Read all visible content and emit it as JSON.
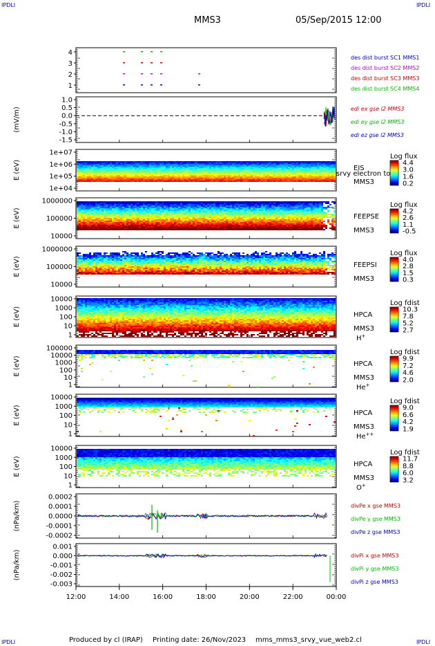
{
  "corner_labels": {
    "tl": "IPDLI",
    "tr": "IPDLI",
    "bl": "IPDLI",
    "br": "IPDLI"
  },
  "header": {
    "spacecraft": "MMS3",
    "datetime": "05/Sep/2015 12:00"
  },
  "footer": {
    "producer": "Produced by cl (IRAP)",
    "printing_date": "Printing date: 26/Nov/2023",
    "script": "mms_mms3_srvy_vue_web2.cl"
  },
  "colors": {
    "mms1": "#0000cc",
    "mms2": "#cc00cc",
    "mms3": "#cc0000",
    "mms4": "#00bb00",
    "x": "#cc0000",
    "y": "#00bb00",
    "z": "#0000cc"
  },
  "chart_data": [
    {
      "type": "scatter",
      "name": "burst_availability",
      "yticks": [
        "4",
        "3",
        "2",
        "1"
      ],
      "legend": [
        "des dist burst SC1 MMS1",
        "des dist burst SC2 MMS2",
        "des dist burst SC3 MMS3",
        "des dist burst SC4 MMS4"
      ]
    },
    {
      "type": "line",
      "ylabel": "(mV/m)",
      "yticks": [
        "1.0",
        "0.5",
        "0.0",
        "-0.5",
        "-1.0",
        "-1.5"
      ],
      "ylim": [
        -1.5,
        1.0
      ],
      "legend": [
        "edi ex gse l2 MMS3",
        "edi ey gse l2 MMS3",
        "edi ez gse l2 MMS3"
      ]
    },
    {
      "type": "heatmap",
      "ylabel": "E (eV)",
      "yticks": [
        "1e+07",
        "1e+06",
        "1e+05",
        "1e+04"
      ],
      "instrument": "EIS",
      "species": "srvy electron to",
      "sc": "MMS3",
      "colorbar_title": "Log flux",
      "colorbar_ticks": [
        "4.4",
        "3.0",
        "1.6",
        "0.2"
      ]
    },
    {
      "type": "heatmap",
      "ylabel": "E (eV)",
      "yticks": [
        "1000000",
        "100000",
        "10000"
      ],
      "instrument": "FEEPSE",
      "sc": "MMS3",
      "colorbar_title": "Log flux",
      "colorbar_ticks": [
        "4.2",
        "2.6",
        "1.1",
        "-0.5"
      ]
    },
    {
      "type": "heatmap",
      "ylabel": "E (eV)",
      "yticks": [
        "1000000",
        "100000",
        "10000"
      ],
      "instrument": "FEEPSI",
      "sc": "MMS3",
      "colorbar_title": "Log flux",
      "colorbar_ticks": [
        "4.0",
        "2.8",
        "1.5",
        "0.3"
      ]
    },
    {
      "type": "heatmap",
      "ylabel": "E (eV)",
      "yticks": [
        "10000",
        "1000",
        "100",
        "10",
        "1"
      ],
      "instrument": "HPCA",
      "sc": "MMS3",
      "species": "H",
      "species_sup": "+",
      "colorbar_title": "Log fdist",
      "colorbar_ticks": [
        "10.3",
        "7.8",
        "5.2",
        "2.7"
      ]
    },
    {
      "type": "heatmap",
      "ylabel": "E (eV)",
      "yticks": [
        "100000",
        "10000",
        "1000",
        "100",
        "10",
        "1"
      ],
      "instrument": "HPCA",
      "sc": "MMS3",
      "species": "He",
      "species_sup": "+",
      "colorbar_title": "Log fdist",
      "colorbar_ticks": [
        "9.9",
        "7.2",
        "4.6",
        "2.0"
      ]
    },
    {
      "type": "heatmap",
      "ylabel": "E (eV)",
      "yticks": [
        "10000",
        "1000",
        "100",
        "10",
        "1"
      ],
      "instrument": "HPCA",
      "sc": "MMS3",
      "species": "He",
      "species_sup": "++",
      "colorbar_title": "Log fdist",
      "colorbar_ticks": [
        "9.0",
        "6.6",
        "4.2",
        "1.9"
      ]
    },
    {
      "type": "heatmap",
      "ylabel": "E (eV)",
      "yticks": [
        "10000",
        "1000",
        "100",
        "10",
        "1"
      ],
      "instrument": "HPCA",
      "sc": "MMS3",
      "species": "O",
      "species_sup": "+",
      "colorbar_title": "Log fdist",
      "colorbar_ticks": [
        "11.7",
        "8.8",
        "6.0",
        "3.2"
      ]
    },
    {
      "type": "line",
      "ylabel": "(nPa/km)",
      "yticks": [
        "0.0002",
        "0.0001",
        "0.0000",
        "-0.0001",
        "-0.0002"
      ],
      "ylim": [
        -0.0003,
        0.00025
      ],
      "legend": [
        "divPe x gse MMS3",
        "divPe y gse MMS3",
        "divPe z gse MMS3"
      ]
    },
    {
      "type": "line",
      "ylabel": "(nPa/km)",
      "yticks": [
        "0.001",
        "0.000",
        "-0.001",
        "-0.002",
        "-0.003"
      ],
      "ylim": [
        -0.003,
        0.001
      ],
      "legend": [
        "divPi x gse MMS3",
        "divPi y gse MMS3",
        "divPi z gse MMS3"
      ]
    }
  ],
  "xaxis": {
    "ticks": [
      "12:00",
      "14:00",
      "16:00",
      "18:00",
      "20:00",
      "22:00",
      "00:00"
    ]
  }
}
